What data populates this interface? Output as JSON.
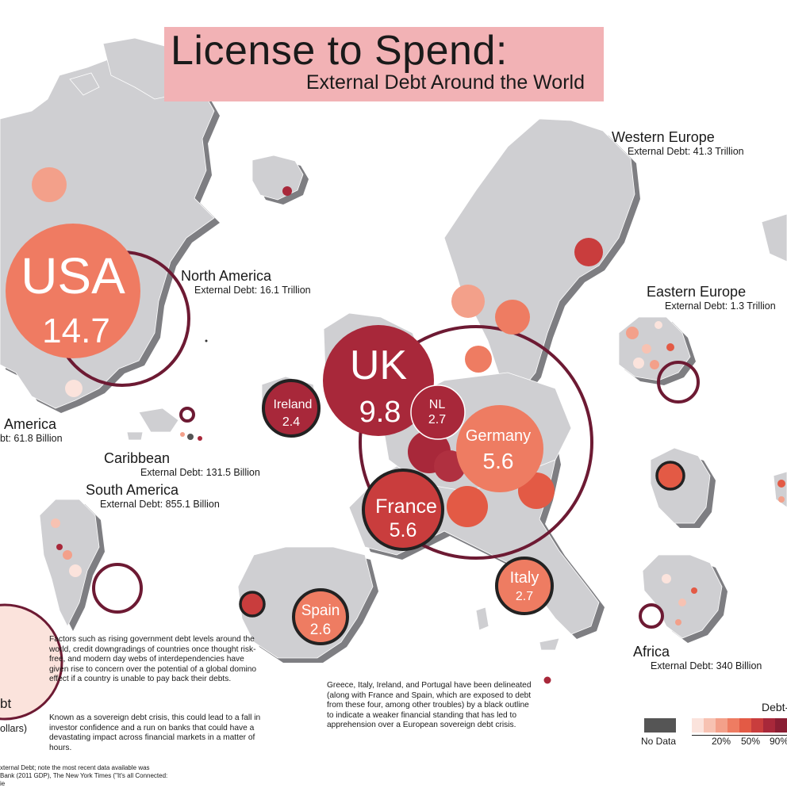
{
  "title": {
    "main": "License to Spend:",
    "sub": "External Debt Around the World"
  },
  "regions": {
    "western_europe": {
      "name": "Western Europe",
      "debt": "External Debt:  41.3 Trillion"
    },
    "north_america": {
      "name": "North America",
      "debt": "External Debt:  16.1 Trillion"
    },
    "eastern_europe": {
      "name": "Eastern Europe",
      "debt": "External Debt:  1.3 Trillion"
    },
    "central_america": {
      "name": "America",
      "debt": "bt:  61.8 Billion"
    },
    "caribbean": {
      "name": "Caribbean",
      "debt": "External Debt:  131.5 Billion"
    },
    "south_america": {
      "name": "South America",
      "debt": "External Debt:  855.1 Billion"
    },
    "africa": {
      "name": "Africa",
      "debt": "External Debt:  340 Billion"
    }
  },
  "countries": {
    "usa": {
      "name": "USA",
      "value": "14.7"
    },
    "uk": {
      "name": "UK",
      "value": "9.8"
    },
    "ireland": {
      "name": "Ireland",
      "value": "2.4"
    },
    "nl": {
      "name": "NL",
      "value": "2.7"
    },
    "germany": {
      "name": "Germany",
      "value": "5.6"
    },
    "france": {
      "name": "France",
      "value": "5.6"
    },
    "spain": {
      "name": "Spain",
      "value": "2.6"
    },
    "italy": {
      "name": "Italy",
      "value": "2.7"
    }
  },
  "text": {
    "factors": "Factors such as rising government debt levels around the world, credit downgradings of countries once thought risk-free, and modern day webs of interdependencies have given rise to concern over the potential of a global domino effect if a country is unable to pay back their debts.",
    "known": "Known as a sovereign debt crisis, this could lead to a fall in investor confidence and a run on banks that could have a devastating impact across financial markets in a matter of hours.",
    "greece": "Greece, Italy, Ireland, and Portugal have been delineated (along with France and Spain, which are exposed to debt from these four, among other troubles) by a black outline to indicate a weaker financial standing that has led to apprehension over a European sovereign debt crisis.",
    "left_legend_1": "bt",
    "left_legend_2": "ollars)",
    "source_1": "xternal Debt; note the most recent data available was",
    "source_2": "Bank (2011 GDP), The New York Times (\"It's all Connected:",
    "source_3": "ie"
  },
  "legend": {
    "title": "Debt-",
    "no_data": "No Data",
    "ticks": [
      "20%",
      "50%",
      "90%"
    ],
    "colors": [
      "#fbe3dc",
      "#f7c2b2",
      "#f3a08a",
      "#ee7c62",
      "#e35a45",
      "#c93d3d",
      "#a8283a",
      "#8a1e33"
    ]
  },
  "colors": {
    "title_box": "#f2b2b5",
    "land": "#cfcfd2",
    "land_shadow": "#7e7e82",
    "ring": "#6d1a33",
    "dark_red": "#a8283a",
    "salmon": "#ef7b62"
  }
}
